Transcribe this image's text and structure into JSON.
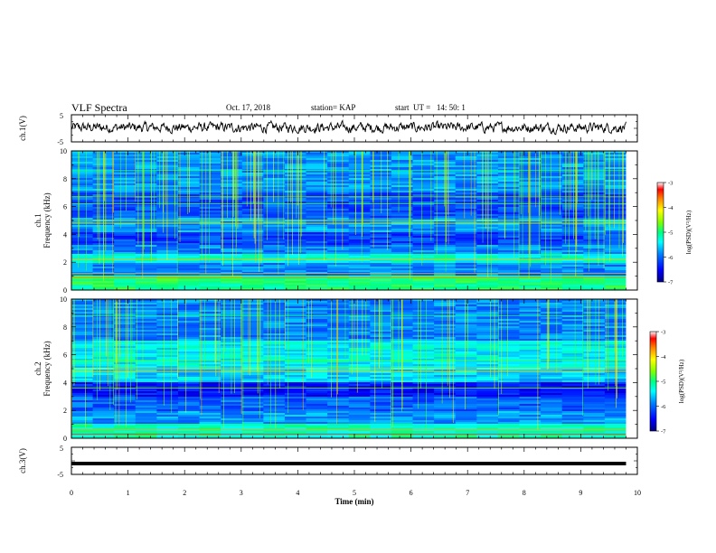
{
  "header": {
    "title": "VLF Spectra",
    "date": "Oct. 17, 2018",
    "station": "station= KAP",
    "start": "start  UT =   14: 50: 1"
  },
  "chart_data": [
    {
      "type": "line",
      "name": "ch1-waveform",
      "ylabel": "ch.1(V)",
      "ylim": [
        -5,
        5
      ],
      "yticks": [
        "5",
        "-5"
      ],
      "x_range_min": [
        0,
        9.8
      ],
      "note_level_v": 0.3,
      "noise_amplitude_v": 1.8
    },
    {
      "type": "heatmap",
      "name": "ch1-spectrogram",
      "ylabel": [
        "ch.1",
        "Frequency  (kHz)"
      ],
      "ylim": [
        0,
        10
      ],
      "yticks": [
        "0",
        "2",
        "4",
        "6",
        "8",
        "10"
      ],
      "x_range_min": [
        0,
        9.8
      ],
      "colorbar": {
        "label": "log(PSD)(V²/Hz)",
        "range": [
          -7,
          -3
        ],
        "ticks": [
          "-3",
          "-4",
          "-5",
          "-6",
          "-7"
        ],
        "colors": [
          "#000080",
          "#0000ff",
          "#0080ff",
          "#00ffff",
          "#00ff80",
          "#80ff00",
          "#ffff00",
          "#ff8000",
          "#ff0000",
          "#ffffff"
        ]
      }
    },
    {
      "type": "heatmap",
      "name": "ch2-spectrogram",
      "ylabel": [
        "ch.2",
        "Frequency  (kHz)"
      ],
      "ylim": [
        0,
        10
      ],
      "yticks": [
        "0",
        "2",
        "4",
        "6",
        "8",
        "10"
      ],
      "x_range_min": [
        0,
        9.8
      ],
      "colorbar": {
        "label": "log(PSD)(V²/Hz)",
        "range": [
          -7,
          -3
        ],
        "ticks": [
          "-3",
          "-4",
          "-5",
          "-6",
          "-7"
        ]
      }
    },
    {
      "type": "line",
      "name": "ch3-waveform",
      "ylabel": "ch.3(V)",
      "ylim": [
        -5,
        5
      ],
      "yticks": [
        "5",
        "-5"
      ],
      "x_range_min": [
        0,
        9.8
      ],
      "level_v": -1.0
    }
  ],
  "xaxis": {
    "label": "Time  (min)",
    "range": [
      0,
      10
    ],
    "ticks": [
      "0",
      "1",
      "2",
      "3",
      "4",
      "5",
      "6",
      "7",
      "8",
      "9",
      "10"
    ]
  }
}
